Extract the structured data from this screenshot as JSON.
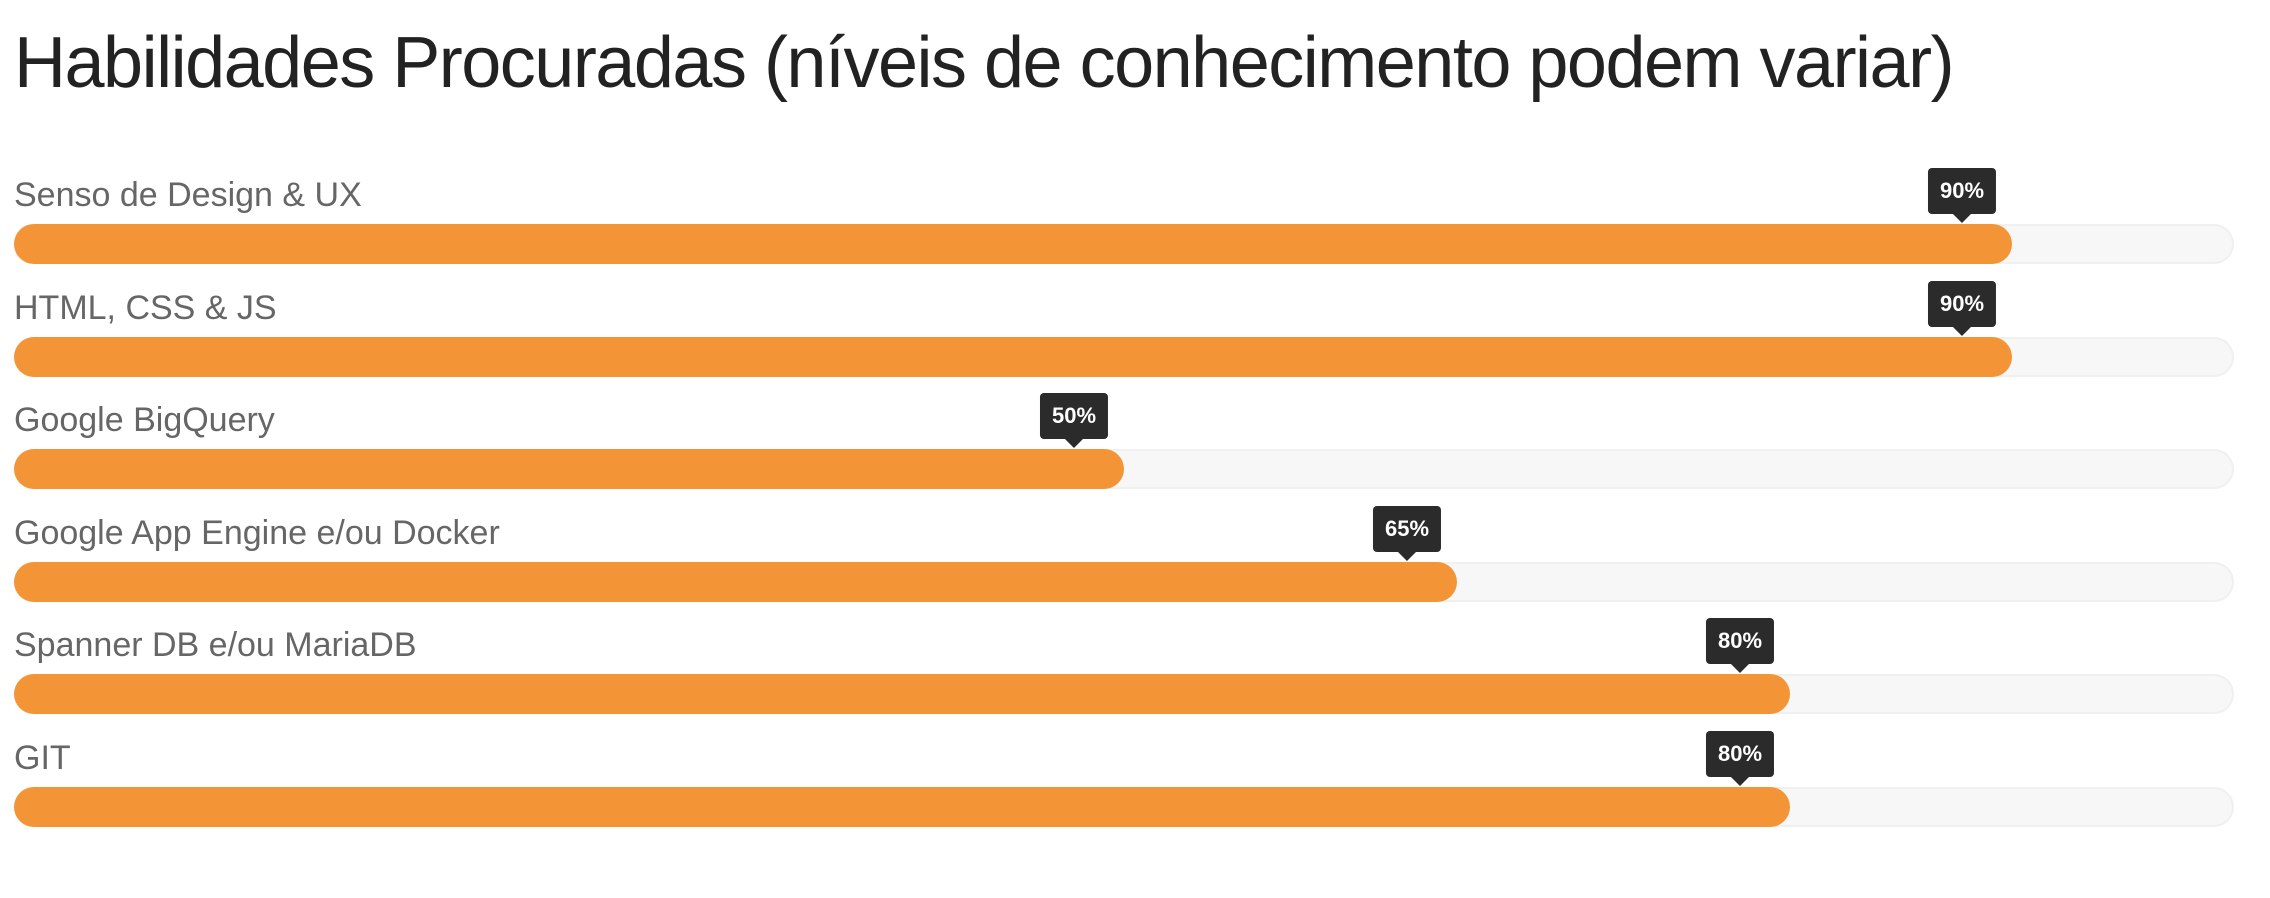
{
  "title": "Habilidades Procuradas (níveis de conhecimento podem variar)",
  "colors": {
    "bar_fill": "#f39536",
    "track": "#f7f7f7",
    "tooltip": "#2b2b2b",
    "label": "#666666"
  },
  "chart_data": {
    "type": "bar",
    "orientation": "horizontal",
    "title": "Habilidades Procuradas (níveis de conhecimento podem variar)",
    "categories": [
      "Senso de Design & UX",
      "HTML, CSS & JS",
      "Google BigQuery",
      "Google App Engine e/ou Docker",
      "Spanner DB e/ou MariaDB",
      "GIT"
    ],
    "values": [
      90,
      90,
      50,
      65,
      80,
      80
    ],
    "value_labels": [
      "90%",
      "90%",
      "50%",
      "65%",
      "80%",
      "80%"
    ],
    "xlim": [
      0,
      100
    ],
    "grid": false
  }
}
